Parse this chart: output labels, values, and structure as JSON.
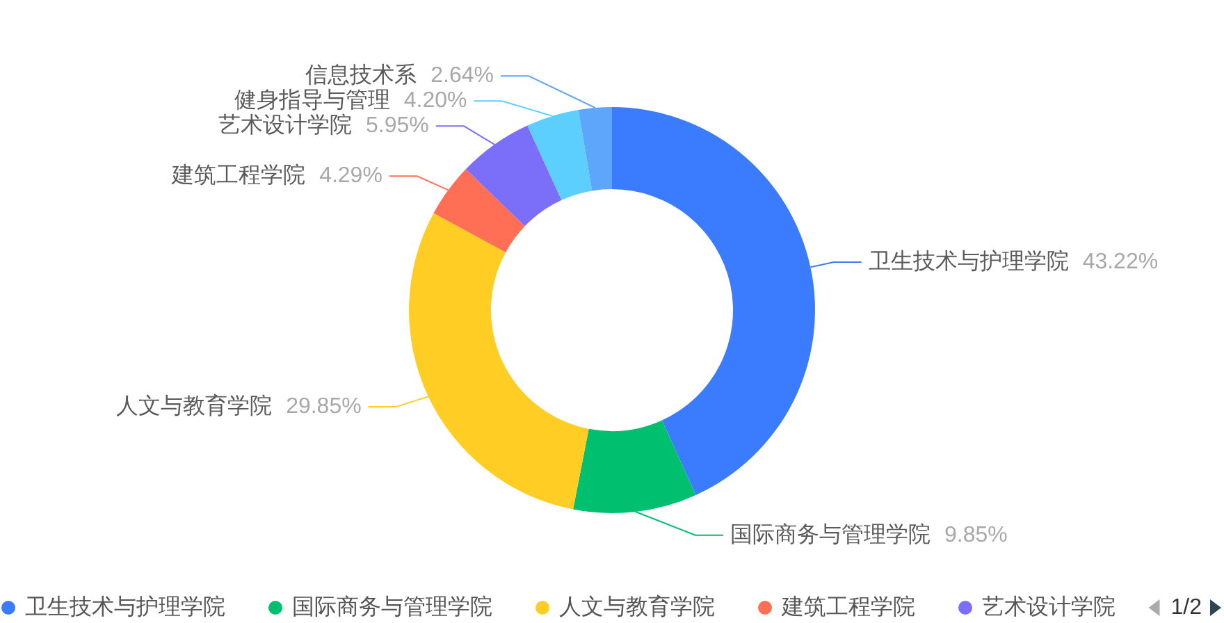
{
  "chart_data": {
    "type": "donut",
    "categories": [
      "卫生技术与护理学院",
      "国际商务与管理学院",
      "人文与教育学院",
      "建筑工程学院",
      "艺术设计学院",
      "健身指导与管理",
      "信息技术系"
    ],
    "values": [
      43.22,
      9.85,
      29.85,
      4.29,
      5.95,
      4.2,
      2.64
    ],
    "colors": [
      "#3b7cff",
      "#00bf6f",
      "#ffcd24",
      "#ff6f55",
      "#7b6ff9",
      "#5ccfff",
      "#5ea5fc"
    ],
    "value_labels": [
      "43.22%",
      "9.85%",
      "29.85%",
      "4.29%",
      "5.95%",
      "4.20%",
      "2.64%"
    ],
    "legend": "bottom",
    "annotations": [
      "1/2"
    ]
  }
}
